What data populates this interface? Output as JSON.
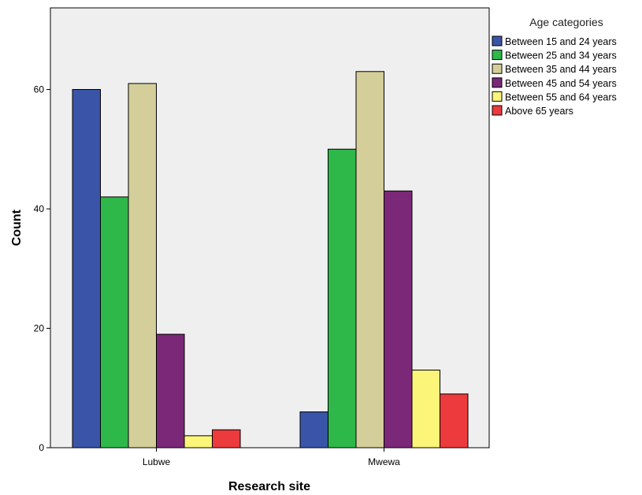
{
  "chart_data": {
    "type": "bar",
    "categories": [
      "Lubwe",
      "Mwewa"
    ],
    "series": [
      {
        "name": "Between 15 and 24 years",
        "values": [
          60,
          6
        ]
      },
      {
        "name": "Between 25 and 34 years",
        "values": [
          42,
          50
        ]
      },
      {
        "name": "Between 35 and 44 years",
        "values": [
          61,
          63
        ]
      },
      {
        "name": "Between 45 and 54 years",
        "values": [
          19,
          43
        ]
      },
      {
        "name": "Between 55 and 64 years",
        "values": [
          2,
          13
        ]
      },
      {
        "name": "Above 65 years",
        "values": [
          3,
          9
        ]
      }
    ],
    "colors": [
      "#3a55a8",
      "#2fb84a",
      "#d4cf9a",
      "#7b2878",
      "#fbf57a",
      "#ec3a3d"
    ],
    "title": "",
    "xlabel": "Research site",
    "ylabel": "Count",
    "ylim": [
      0,
      75
    ],
    "yticks": [
      0,
      20,
      40,
      60
    ],
    "legend_title": "Age categories",
    "legend_position": "right",
    "grid": false,
    "plot_background": "#efefef"
  }
}
